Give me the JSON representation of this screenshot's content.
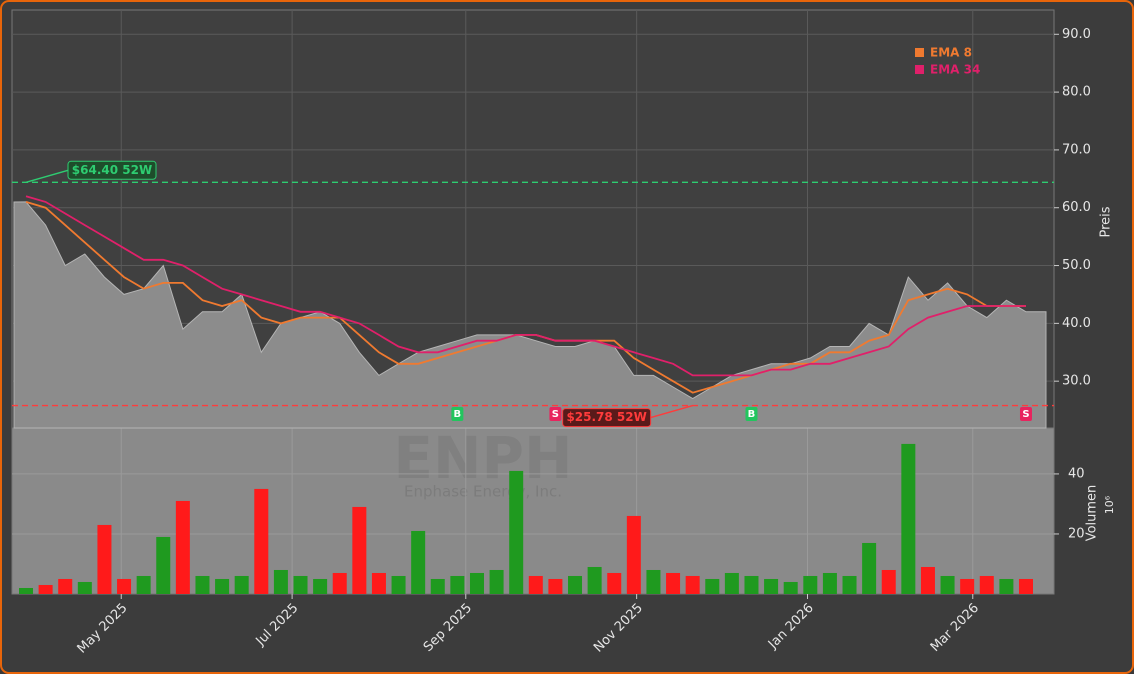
{
  "chart_data": [
    {
      "type": "area",
      "ylabel": "Preis",
      "color": "#8c8c8c",
      "x": [
        "2025-03-28",
        "2025-04-04",
        "2025-04-11",
        "2025-04-18",
        "2025-04-25",
        "2025-05-02",
        "2025-05-09",
        "2025-05-16",
        "2025-05-23",
        "2025-05-30",
        "2025-06-06",
        "2025-06-13",
        "2025-06-20",
        "2025-06-27",
        "2025-07-04",
        "2025-07-11",
        "2025-07-18",
        "2025-07-25",
        "2025-08-01",
        "2025-08-08",
        "2025-08-15",
        "2025-08-22",
        "2025-08-29",
        "2025-09-05",
        "2025-09-12",
        "2025-09-19",
        "2025-09-26",
        "2025-10-03",
        "2025-10-10",
        "2025-10-17",
        "2025-10-24",
        "2025-10-31",
        "2025-11-07",
        "2025-11-14",
        "2025-11-21",
        "2025-11-28",
        "2025-12-05",
        "2025-12-12",
        "2025-12-19",
        "2025-12-26",
        "2026-01-02",
        "2026-01-09",
        "2026-01-16",
        "2026-01-23",
        "2026-01-30",
        "2026-02-06",
        "2026-02-13",
        "2026-02-20",
        "2026-02-27",
        "2026-03-06",
        "2026-03-13",
        "2026-03-20"
      ],
      "values": [
        61,
        57,
        50,
        52,
        48,
        45,
        46,
        50,
        39,
        42,
        42,
        45,
        35,
        40,
        41,
        42,
        40,
        35,
        31,
        33,
        35,
        36,
        37,
        38,
        38,
        38,
        37,
        36,
        36,
        37,
        36,
        31,
        31,
        29,
        27,
        29,
        31,
        32,
        33,
        33,
        34,
        36,
        36,
        40,
        38,
        48,
        44,
        47,
        43,
        41,
        44,
        42
      ],
      "series": [
        {
          "name": "EMA 8",
          "color": "#f07a30",
          "values": [
            61,
            60,
            57,
            54,
            51,
            48,
            46,
            47,
            47,
            44,
            43,
            44,
            41,
            40,
            41,
            41,
            41,
            38,
            35,
            33,
            33,
            34,
            35,
            36,
            37,
            38,
            38,
            37,
            37,
            37,
            37,
            34,
            32,
            30,
            28,
            29,
            30,
            31,
            32,
            33,
            33,
            35,
            35,
            37,
            38,
            44,
            45,
            46,
            45,
            43,
            43,
            43
          ]
        },
        {
          "name": "EMA 34",
          "color": "#e0206a",
          "values": [
            62,
            61,
            59,
            57,
            55,
            53,
            51,
            51,
            50,
            48,
            46,
            45,
            44,
            43,
            42,
            42,
            41,
            40,
            38,
            36,
            35,
            35,
            36,
            37,
            37,
            38,
            38,
            37,
            37,
            37,
            36,
            35,
            34,
            33,
            31,
            31,
            31,
            31,
            32,
            32,
            33,
            33,
            34,
            35,
            36,
            39,
            41,
            42,
            43,
            43,
            43,
            43
          ]
        }
      ],
      "xlim": [
        "2025-03-23",
        "2026-03-30"
      ],
      "ylim": [
        21.9,
        94.2
      ],
      "yticks": [
        {
          "value": 30,
          "label": "30.0"
        },
        {
          "value": 40,
          "label": "40.0"
        },
        {
          "value": 50,
          "label": "50.0"
        },
        {
          "value": 60,
          "label": "60.0"
        },
        {
          "value": 70,
          "label": "70.0"
        },
        {
          "value": 80,
          "label": "80.0"
        },
        {
          "value": 90,
          "label": "90.0"
        }
      ],
      "grid": true,
      "legend": "upper right",
      "hlines": [
        {
          "value": 64.4,
          "label": "$64.40 52W",
          "color": "#2ecc71",
          "at": 0
        },
        {
          "value": 25.78,
          "label": "$25.78 52W",
          "color": "#ff3b3b",
          "at": 34
        }
      ],
      "signals": [
        {
          "at": 22,
          "label": "B",
          "color": "#22c55e"
        },
        {
          "at": 27,
          "label": "S",
          "color": "#e8245e"
        },
        {
          "at": 37,
          "label": "B",
          "color": "#22c55e"
        },
        {
          "at": 51,
          "label": "S",
          "color": "#e8245e"
        }
      ],
      "watermark": "ENPH",
      "watermark_subtitle": "Enphase Energy, Inc."
    },
    {
      "type": "bar",
      "ylabel": "Volumen",
      "y_exponent_label": "10⁶",
      "values": [
        2,
        3,
        5,
        4,
        23,
        5,
        6,
        19,
        31,
        6,
        5,
        6,
        35,
        8,
        6,
        5,
        7,
        29,
        7,
        6,
        21,
        5,
        6,
        7,
        8,
        41,
        6,
        5,
        6,
        9,
        7,
        26,
        8,
        7,
        6,
        5,
        7,
        6,
        5,
        4,
        6,
        7,
        6,
        17,
        8,
        50,
        9,
        6,
        5,
        6,
        5,
        5
      ],
      "up_color": "#1f9a1f",
      "down_color": "#ff1a1a",
      "xlim": [
        "2025-03-23",
        "2026-03-30"
      ],
      "ylim": [
        0,
        55.3
      ],
      "yticks": [
        20,
        40
      ],
      "xticks": [
        {
          "value": "2025-05-01",
          "label": "May 2025"
        },
        {
          "value": "2025-07-01",
          "label": "Jul 2025"
        },
        {
          "value": "2025-09-01",
          "label": "Sep 2025"
        },
        {
          "value": "2025-11-01",
          "label": "Nov 2025"
        },
        {
          "value": "2026-01-01",
          "label": "Jan 2026"
        },
        {
          "value": "2026-03-01",
          "label": "Mar 2026"
        }
      ],
      "grid": true
    }
  ]
}
